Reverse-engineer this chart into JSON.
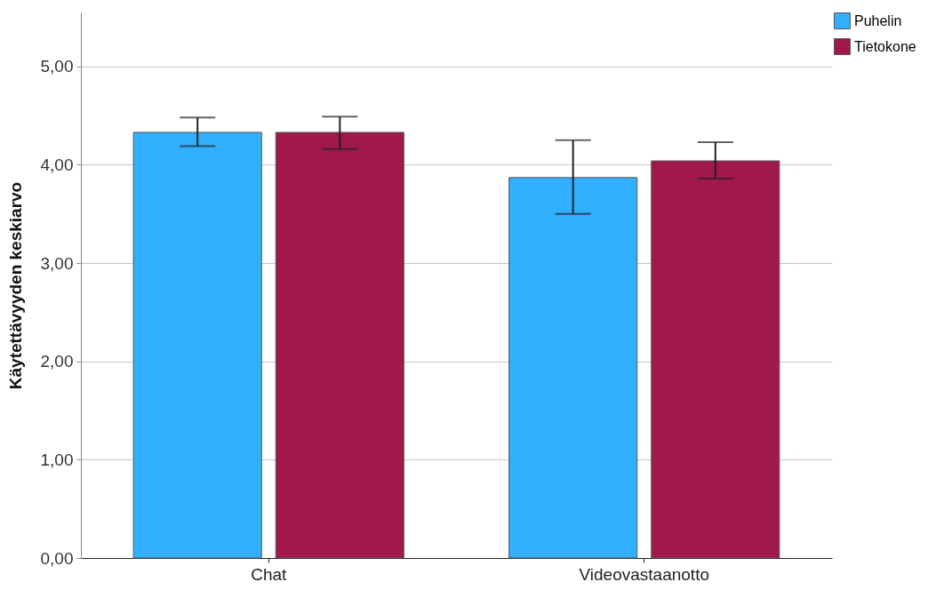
{
  "chart_data": {
    "type": "bar",
    "ylabel": "Käytettävyyden keskiarvo",
    "categories": [
      "Chat",
      "Videovastaanotto"
    ],
    "series": [
      {
        "name": "Puhelin",
        "color": "#31aefe",
        "values": [
          4.33,
          3.87
        ],
        "errors": [
          [
            4.19,
            4.48
          ],
          [
            3.5,
            4.25
          ]
        ]
      },
      {
        "name": "Tietokone",
        "color": "#a0184c",
        "values": [
          4.33,
          4.04
        ],
        "errors": [
          [
            4.16,
            4.49
          ],
          [
            3.86,
            4.23
          ]
        ]
      }
    ],
    "ylim": [
      0,
      5.55
    ],
    "yticks": [
      {
        "value": 0,
        "label": "0,00"
      },
      {
        "value": 1,
        "label": "1,00"
      },
      {
        "value": 2,
        "label": "2,00"
      },
      {
        "value": 3,
        "label": "3,00"
      },
      {
        "value": 4,
        "label": "4,00"
      },
      {
        "value": 5,
        "label": "5,00"
      }
    ],
    "grid": "y",
    "legend": "top right"
  }
}
